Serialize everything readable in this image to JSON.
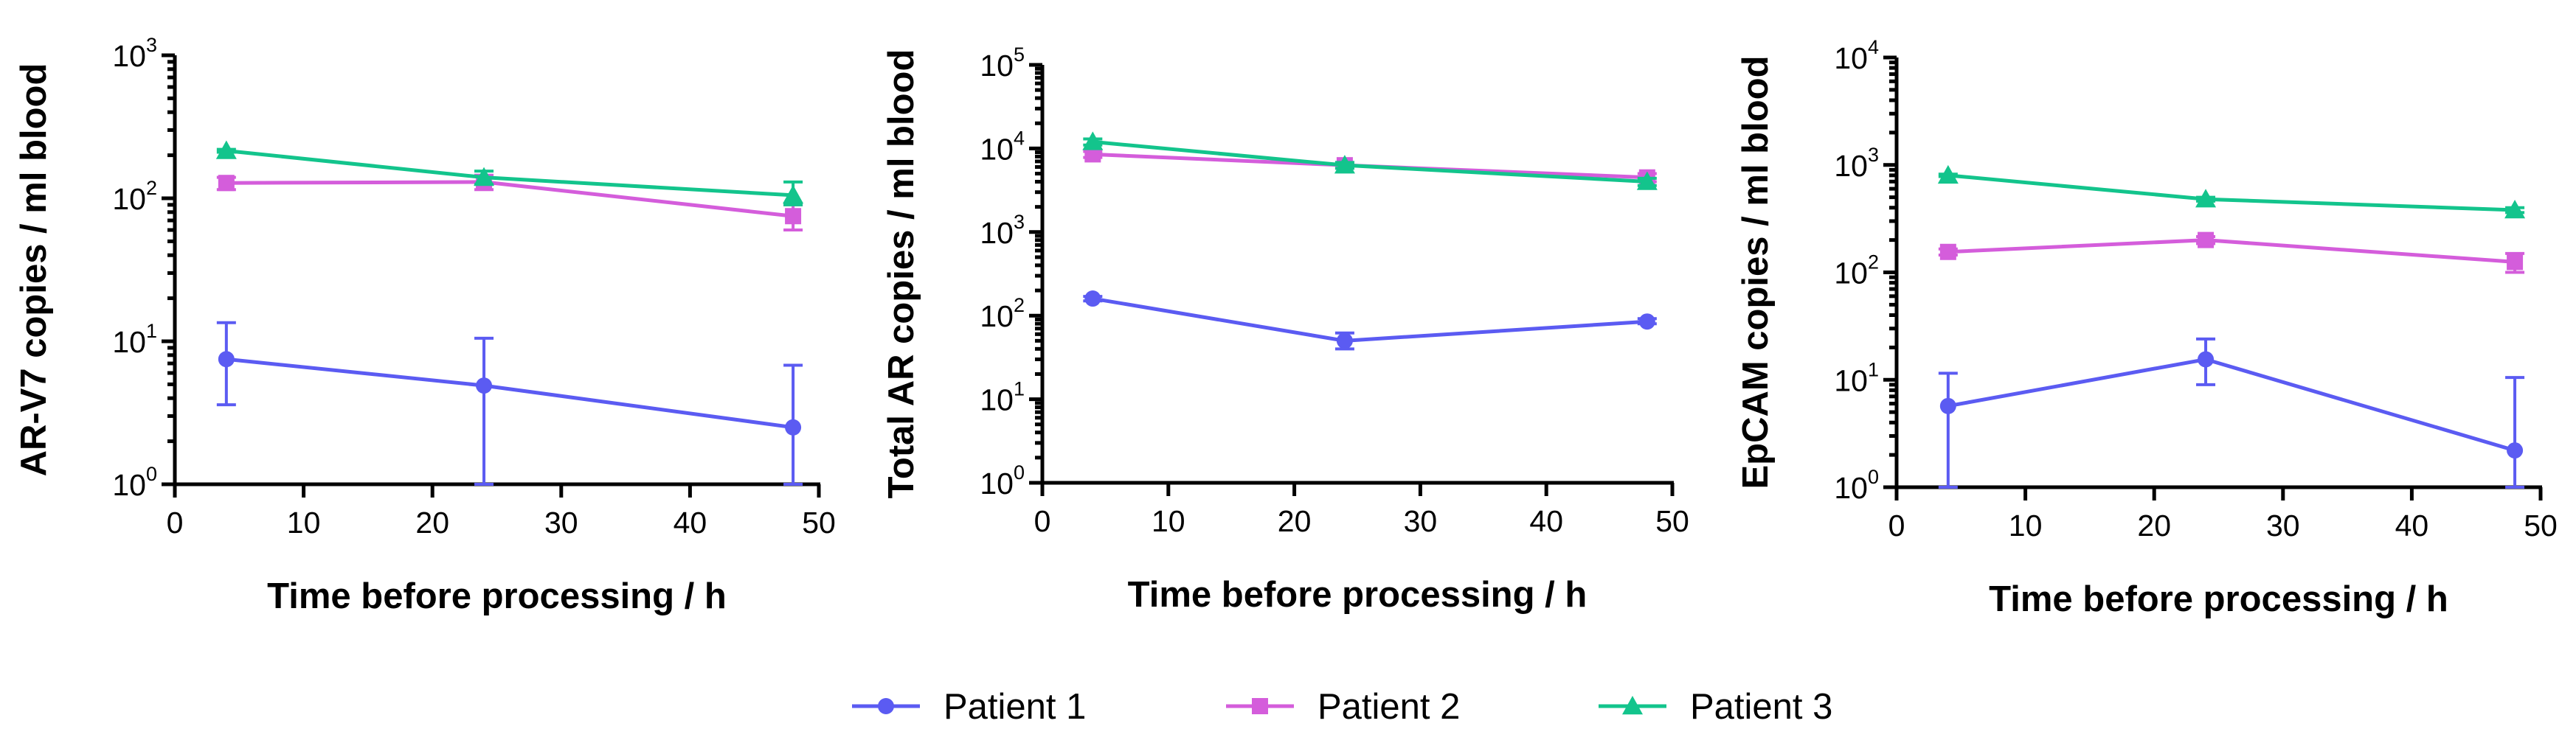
{
  "legend": [
    {
      "name": "Patient 1",
      "color": "#5b5bf2",
      "marker": "circle"
    },
    {
      "name": "Patient 2",
      "color": "#d45ddb",
      "marker": "square"
    },
    {
      "name": "Patient 3",
      "color": "#13c48c",
      "marker": "triangle"
    }
  ],
  "chart_data": [
    {
      "type": "line",
      "xlabel": "Time before processing / h",
      "ylabel": "AR-V7 copies / ml blood",
      "yscale": "log",
      "xlim": [
        0,
        50
      ],
      "ylim": [
        1,
        1000
      ],
      "xticks": [
        "0",
        "10",
        "20",
        "30",
        "40",
        "50"
      ],
      "yticks": [
        {
          "base": "10",
          "exp": "0"
        },
        {
          "base": "10",
          "exp": "1"
        },
        {
          "base": "10",
          "exp": "2"
        },
        {
          "base": "10",
          "exp": "3"
        }
      ],
      "x": [
        4,
        24,
        48
      ],
      "series": [
        {
          "name": "Patient 1",
          "values": [
            7.5,
            4.9,
            2.5
          ],
          "err_low": [
            3.6,
            1.0,
            1.0
          ],
          "err_high": [
            13.5,
            10.5,
            6.8
          ]
        },
        {
          "name": "Patient 2",
          "values": [
            128,
            130,
            75
          ],
          "err_low": [
            115,
            115,
            60
          ],
          "err_high": [
            140,
            145,
            90
          ]
        },
        {
          "name": "Patient 3",
          "values": [
            215,
            140,
            105
          ],
          "err_low": [
            210,
            125,
            90
          ],
          "err_high": [
            220,
            155,
            130
          ]
        }
      ]
    },
    {
      "type": "line",
      "xlabel": "Time before processing / h",
      "ylabel": "Total  AR copies / ml blood",
      "yscale": "log",
      "xlim": [
        0,
        50
      ],
      "ylim": [
        1,
        100000
      ],
      "xticks": [
        "0",
        "10",
        "20",
        "30",
        "40",
        "50"
      ],
      "yticks": [
        {
          "base": "10",
          "exp": "0"
        },
        {
          "base": "10",
          "exp": "1"
        },
        {
          "base": "10",
          "exp": "2"
        },
        {
          "base": "10",
          "exp": "3"
        },
        {
          "base": "10",
          "exp": "4"
        },
        {
          "base": "10",
          "exp": "5"
        }
      ],
      "x": [
        4,
        24,
        48
      ],
      "series": [
        {
          "name": "Patient 1",
          "values": [
            160,
            50,
            85
          ],
          "err_low": [
            150,
            40,
            80
          ],
          "err_high": [
            170,
            62,
            92
          ]
        },
        {
          "name": "Patient 2",
          "values": [
            8500,
            6300,
            4500
          ],
          "err_low": [
            7800,
            5800,
            4000
          ],
          "err_high": [
            9200,
            6800,
            5000
          ]
        },
        {
          "name": "Patient 3",
          "values": [
            12000,
            6300,
            4000
          ],
          "err_low": [
            11000,
            5800,
            3600
          ],
          "err_high": [
            13000,
            6800,
            4400
          ]
        }
      ]
    },
    {
      "type": "line",
      "xlabel": "Time before processing / h",
      "ylabel": "EpCAM copies / ml blood",
      "yscale": "log",
      "xlim": [
        0,
        50
      ],
      "ylim": [
        1,
        10000
      ],
      "xticks": [
        "0",
        "10",
        "20",
        "30",
        "40",
        "50"
      ],
      "yticks": [
        {
          "base": "10",
          "exp": "0"
        },
        {
          "base": "10",
          "exp": "1"
        },
        {
          "base": "10",
          "exp": "2"
        },
        {
          "base": "10",
          "exp": "3"
        },
        {
          "base": "10",
          "exp": "4"
        }
      ],
      "x": [
        4,
        24,
        48
      ],
      "series": [
        {
          "name": "Patient 1",
          "values": [
            5.7,
            15.5,
            2.2
          ],
          "err_low": [
            1.0,
            9.0,
            1.0
          ],
          "err_high": [
            11.5,
            24,
            10.5
          ]
        },
        {
          "name": "Patient 2",
          "values": [
            155,
            200,
            125
          ],
          "err_low": [
            145,
            185,
            100
          ],
          "err_high": [
            165,
            215,
            150
          ]
        },
        {
          "name": "Patient 3",
          "values": [
            800,
            480,
            380
          ],
          "err_low": [
            780,
            460,
            360
          ],
          "err_high": [
            820,
            500,
            400
          ]
        }
      ]
    }
  ]
}
